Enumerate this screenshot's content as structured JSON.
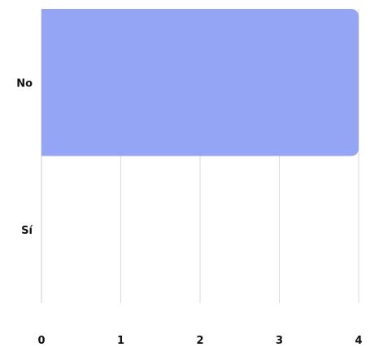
{
  "chart_data": {
    "type": "bar",
    "orientation": "horizontal",
    "categories": [
      "No",
      "Sí"
    ],
    "values": [
      4,
      0
    ],
    "xlim": [
      0,
      4
    ],
    "x_ticks": [
      "0",
      "1",
      "2",
      "3",
      "4"
    ],
    "grid": true,
    "bar_color": "#95a5f5",
    "title": "",
    "xlabel": "",
    "ylabel": ""
  }
}
